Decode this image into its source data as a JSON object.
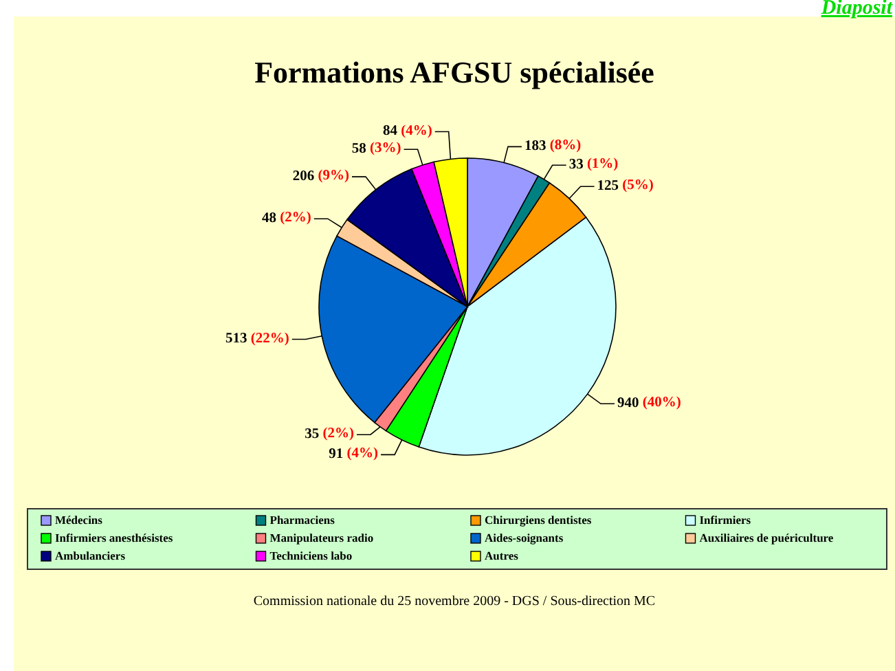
{
  "chart_data": {
    "type": "pie",
    "title": "Formations AFGSU spécialisée",
    "categories": [
      "Médecins",
      "Pharmaciens",
      "Chirurgiens dentistes",
      "Infirmiers",
      "Infirmiers anesthésistes",
      "Manipulateurs radio",
      "Aides-soignants",
      "Auxiliaires de puériculture",
      "Ambulanciers",
      "Techniciens labo",
      "Autres"
    ],
    "values": [
      183,
      33,
      125,
      940,
      91,
      35,
      513,
      48,
      206,
      58,
      84
    ],
    "colors": [
      "#9999ff",
      "#008080",
      "#ff9900",
      "#ccffff",
      "#00ff00",
      "#ff8080",
      "#0066cc",
      "#ffcc99",
      "#000080",
      "#ff00ff",
      "#ffff00"
    ],
    "value_labels": [
      "183 (8%)",
      "33 (1%)",
      "125 (5%)",
      "940 (40%)",
      "91 (4%)",
      "35 (2%)",
      "513 (22%)",
      "48 (2%)",
      "206 (9%)",
      "58 (3%)",
      "84 (4%)"
    ],
    "legend": "bottom",
    "annotations": [
      "Commission nationale du 25 novembre 2009 - DGS / Sous-direction MC",
      "Diaposit"
    ]
  }
}
